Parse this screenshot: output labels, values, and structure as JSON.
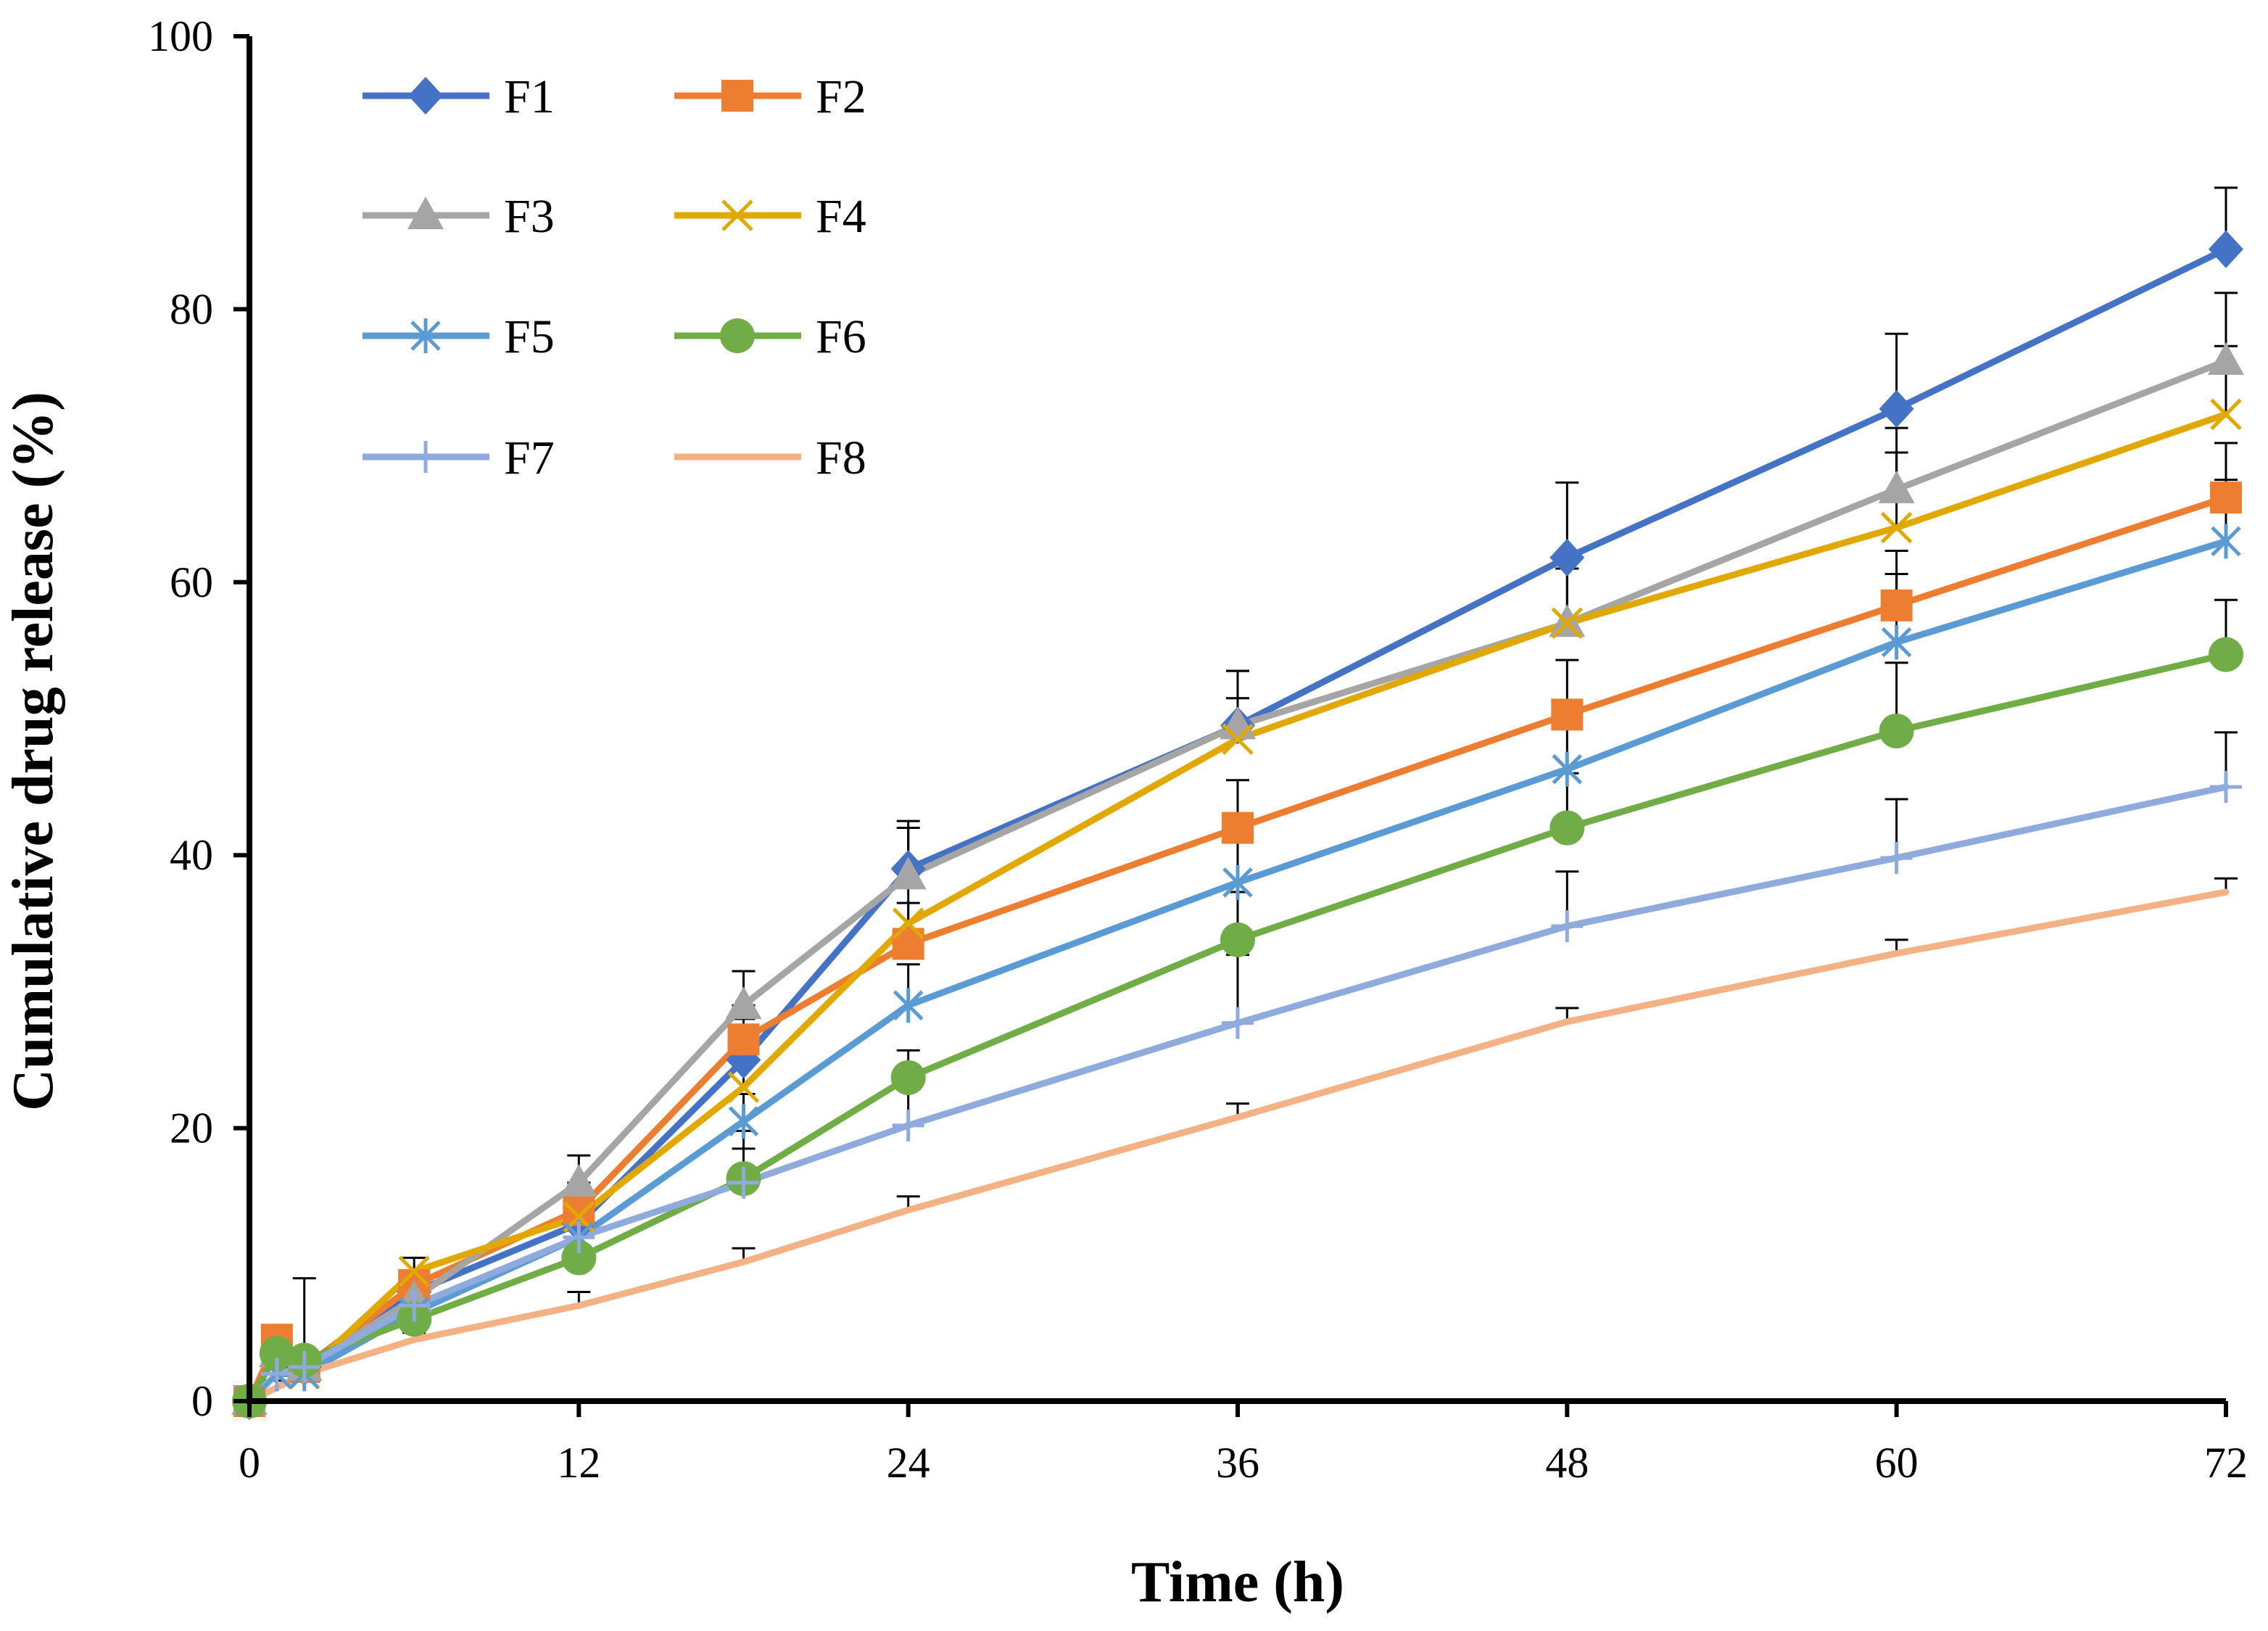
{
  "chart_data": {
    "type": "line",
    "title": "",
    "xlabel": "Time (h)",
    "ylabel": "Cumulative drug release (%)",
    "xlim": [
      0,
      72
    ],
    "ylim": [
      0,
      100
    ],
    "xticks": [
      0,
      12,
      24,
      36,
      48,
      60,
      72
    ],
    "yticks": [
      0,
      20,
      40,
      60,
      80,
      100
    ],
    "grid": false,
    "legend_position": "top-left",
    "x": [
      0,
      1,
      2,
      6,
      12,
      18,
      24,
      36,
      48,
      60,
      72
    ],
    "series": [
      {
        "name": "F1",
        "color": "#4472C4",
        "marker": "diamond",
        "values": [
          0,
          3.5,
          2.5,
          8.0,
          13.0,
          25.0,
          39.0,
          49.5,
          61.8,
          72.7,
          84.4
        ],
        "error": [
          0,
          0.5,
          0.5,
          1.0,
          2.0,
          3.0,
          3.5,
          4.0,
          5.5,
          5.5,
          4.5
        ]
      },
      {
        "name": "F2",
        "color": "#ED7D31",
        "marker": "square",
        "values": [
          0,
          4.5,
          2.5,
          8.5,
          14.0,
          26.5,
          33.5,
          42.0,
          50.3,
          58.3,
          66.2
        ],
        "error": [
          0,
          0.5,
          0.5,
          1.0,
          2.0,
          2.5,
          3.0,
          3.5,
          4.0,
          4.0,
          4.0
        ]
      },
      {
        "name": "F3",
        "color": "#A5A5A5",
        "marker": "triangle",
        "values": [
          0,
          3.5,
          2.5,
          7.5,
          16.0,
          29.0,
          38.5,
          49.5,
          57.0,
          66.8,
          76.2
        ],
        "error": [
          0,
          0.5,
          0.5,
          1.0,
          2.0,
          2.5,
          3.5,
          4.0,
          4.0,
          4.5,
          5.0
        ]
      },
      {
        "name": "F4",
        "color": "#E1A800",
        "marker": "x",
        "values": [
          0,
          2.0,
          2.0,
          9.5,
          13.5,
          23.0,
          35.0,
          48.5,
          57.0,
          64.0,
          72.3
        ],
        "error": [
          0,
          0.5,
          0.5,
          1.0,
          2.0,
          2.5,
          3.0,
          3.0,
          4.0,
          5.5,
          5.0
        ]
      },
      {
        "name": "F5",
        "color": "#5B9BD5",
        "marker": "asterisk",
        "values": [
          0,
          2.0,
          2.0,
          6.5,
          12.0,
          20.5,
          29.0,
          38.0,
          46.3,
          55.6,
          63.0
        ],
        "error": [
          0,
          0.5,
          0.5,
          1.0,
          2.0,
          2.0,
          3.0,
          3.5,
          4.0,
          5.0,
          4.5
        ]
      },
      {
        "name": "F6",
        "color": "#70AD47",
        "marker": "circle",
        "values": [
          0,
          3.5,
          3.0,
          6.0,
          10.5,
          16.3,
          23.7,
          33.8,
          42.0,
          49.1,
          54.7
        ],
        "error": [
          0,
          0.5,
          6.0,
          2.5,
          2.0,
          3.5,
          2.0,
          3.5,
          4.0,
          5.0,
          4.0
        ]
      },
      {
        "name": "F7",
        "color": "#8FAADC",
        "marker": "plus",
        "values": [
          0,
          2.0,
          2.5,
          7.0,
          12.0,
          16.0,
          20.2,
          27.7,
          34.8,
          39.8,
          45.0
        ],
        "error": [
          0,
          0.5,
          0.5,
          1.0,
          1.5,
          2.5,
          4.0,
          5.0,
          4.0,
          4.3,
          4.0
        ]
      },
      {
        "name": "F8",
        "color": "#F4B183",
        "marker": "none",
        "values": [
          0,
          1.0,
          2.0,
          4.5,
          7.0,
          10.2,
          14.0,
          20.8,
          27.8,
          32.8,
          37.3
        ],
        "error": [
          0,
          0.5,
          0.5,
          0.5,
          1.0,
          1.0,
          1.0,
          1.0,
          1.0,
          1.0,
          1.0
        ]
      }
    ]
  }
}
